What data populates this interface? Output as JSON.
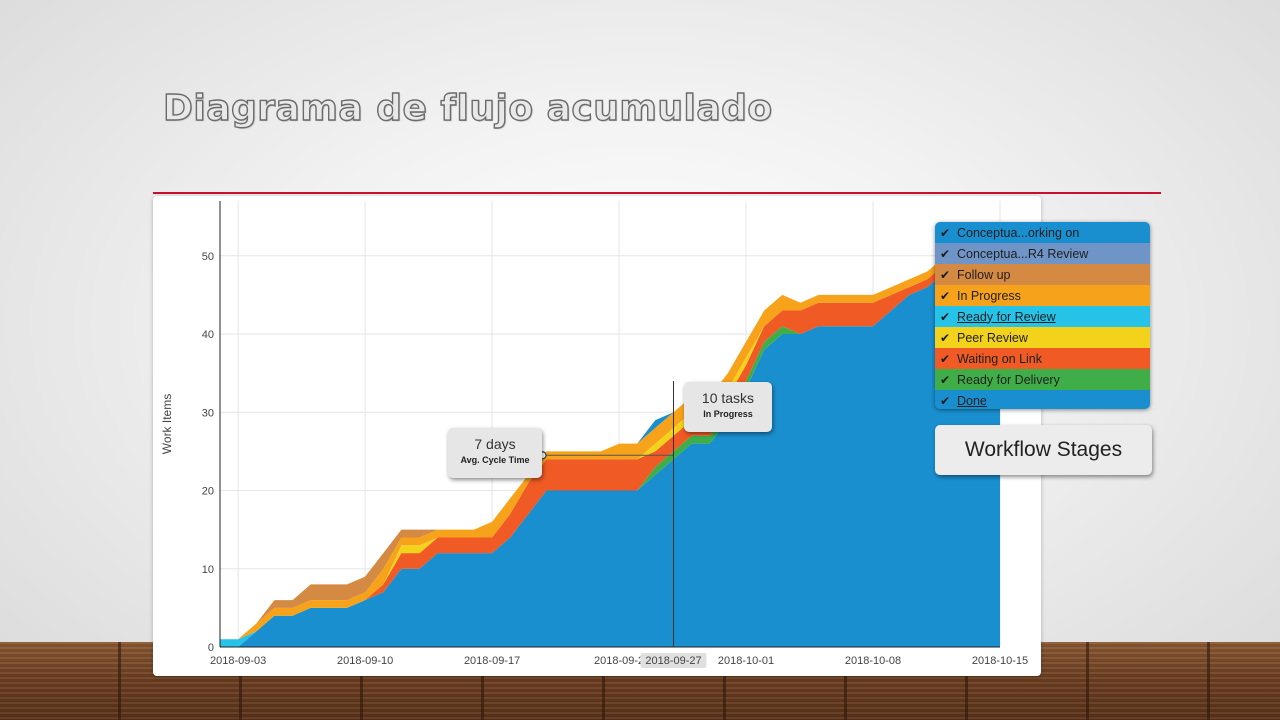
{
  "slide": {
    "title": "Diagrama de flujo acumulado"
  },
  "chart_data": {
    "type": "area",
    "stacked": true,
    "ylabel": "Work Items",
    "xlabel": "",
    "ylim": [
      0,
      57
    ],
    "yticks": [
      0,
      10,
      20,
      30,
      40,
      50
    ],
    "x_tick_labels": [
      "2018-09-03",
      "2018-09-10",
      "2018-09-17",
      "2018-09-2",
      "2018-09-27",
      "2018-10-01",
      "2018-10-08",
      "2018-10-15"
    ],
    "x_tick_days": [
      0,
      7,
      14,
      21,
      24,
      28,
      35,
      42
    ],
    "x_dates": [
      "2018-09-02",
      "2018-09-03",
      "2018-09-04",
      "2018-09-05",
      "2018-09-06",
      "2018-09-07",
      "2018-09-08",
      "2018-09-09",
      "2018-09-10",
      "2018-09-11",
      "2018-09-12",
      "2018-09-13",
      "2018-09-14",
      "2018-09-15",
      "2018-09-16",
      "2018-09-17",
      "2018-09-18",
      "2018-09-19",
      "2018-09-20",
      "2018-09-21",
      "2018-09-22",
      "2018-09-23",
      "2018-09-24",
      "2018-09-25",
      "2018-09-26",
      "2018-09-27",
      "2018-09-28",
      "2018-09-29",
      "2018-09-30",
      "2018-10-01",
      "2018-10-02",
      "2018-10-03",
      "2018-10-04",
      "2018-10-05",
      "2018-10-06",
      "2018-10-07",
      "2018-10-08",
      "2018-10-09",
      "2018-10-10",
      "2018-10-11",
      "2018-10-12",
      "2018-10-13",
      "2018-10-14",
      "2018-10-15"
    ],
    "x_days_from_2018_09_03": [
      -1,
      0,
      1,
      2,
      3,
      4,
      5,
      6,
      7,
      8,
      9,
      10,
      11,
      12,
      13,
      14,
      15,
      16,
      17,
      18,
      19,
      20,
      21,
      22,
      23,
      24,
      25,
      26,
      27,
      28,
      29,
      30,
      31,
      32,
      33,
      34,
      35,
      36,
      37,
      38,
      39,
      40,
      41,
      42
    ],
    "series": [
      {
        "name": "Done",
        "color": "#1a8fcf",
        "values": [
          0,
          0,
          2,
          4,
          4,
          5,
          5,
          5,
          6,
          7,
          10,
          10,
          12,
          12,
          12,
          12,
          14,
          17,
          20,
          20,
          20,
          20,
          20,
          20,
          22,
          24,
          26,
          26,
          29,
          33,
          38,
          40,
          40,
          41,
          41,
          41,
          41,
          43,
          45,
          46,
          48,
          50,
          50,
          50
        ]
      },
      {
        "name": "Ready for Delivery",
        "color": "#3fae49",
        "values": [
          0,
          0,
          0,
          0,
          0,
          0,
          0,
          0,
          0,
          0,
          0,
          0,
          0,
          0,
          0,
          0,
          0,
          0,
          0,
          0,
          0,
          0,
          0,
          0,
          1,
          1,
          1,
          1,
          1,
          1,
          1,
          1,
          0,
          0,
          0,
          0,
          0,
          0,
          0,
          0,
          0,
          0,
          0,
          0
        ]
      },
      {
        "name": "Waiting on Link",
        "color": "#f05a24",
        "values": [
          0,
          0,
          0,
          0,
          0,
          0,
          0,
          0,
          0,
          1,
          2,
          2,
          2,
          2,
          2,
          2,
          3,
          4,
          4,
          4,
          4,
          4,
          4,
          4,
          2,
          2,
          2,
          2,
          2,
          2,
          2,
          2,
          3,
          3,
          3,
          3,
          3,
          2,
          1,
          1,
          1,
          0,
          0,
          0
        ]
      },
      {
        "name": "Peer Review",
        "color": "#f2d21b",
        "values": [
          0,
          0,
          0,
          0,
          0,
          0,
          0,
          0,
          0,
          0,
          1,
          1,
          0,
          0,
          0,
          0,
          0,
          0,
          0,
          0,
          0,
          0,
          0,
          0,
          1,
          1,
          1,
          1,
          1,
          1,
          0,
          0,
          0,
          0,
          0,
          0,
          0,
          0,
          0,
          0,
          0,
          0,
          0,
          0
        ]
      },
      {
        "name": "Ready for Review",
        "color": "#27c2e8",
        "values": [
          1,
          1,
          0,
          0,
          0,
          0,
          0,
          0,
          0,
          0,
          0,
          0,
          0,
          0,
          0,
          0,
          0,
          0,
          0,
          0,
          0,
          0,
          0,
          0,
          0,
          0,
          0,
          0,
          0,
          0,
          0,
          0,
          0,
          0,
          0,
          0,
          0,
          0,
          0,
          0,
          0,
          0,
          0,
          0
        ]
      },
      {
        "name": "In Progress",
        "color": "#f7a21b",
        "values": [
          0,
          0,
          1,
          1,
          1,
          1,
          1,
          1,
          1,
          2,
          1,
          1,
          1,
          1,
          1,
          2,
          2,
          1,
          1,
          1,
          1,
          1,
          2,
          2,
          2,
          2,
          2,
          2,
          2,
          2,
          2,
          2,
          1,
          1,
          1,
          1,
          1,
          1,
          1,
          1,
          1,
          0,
          0,
          0
        ]
      },
      {
        "name": "Follow up",
        "color": "#d48a42",
        "values": [
          0,
          0,
          0,
          1,
          1,
          2,
          2,
          2,
          2,
          2,
          1,
          1,
          0,
          0,
          0,
          0,
          0,
          0,
          0,
          0,
          0,
          0,
          0,
          0,
          0,
          0,
          0,
          0,
          0,
          0,
          0,
          0,
          0,
          0,
          0,
          0,
          0,
          0,
          0,
          0,
          0,
          0,
          0,
          0
        ]
      },
      {
        "name": "Conceptua...R4 Review",
        "color": "#6f94c8",
        "values": [
          0,
          0,
          0,
          0,
          0,
          0,
          0,
          0,
          0,
          0,
          0,
          0,
          0,
          0,
          0,
          0,
          0,
          0,
          0,
          0,
          0,
          0,
          0,
          0,
          0,
          0,
          0,
          0,
          0,
          0,
          0,
          0,
          0,
          0,
          0,
          0,
          0,
          0,
          0,
          0,
          0,
          0,
          0,
          0
        ]
      },
      {
        "name": "Conceptua...orking on",
        "color": "#1a8fcf",
        "values": [
          0,
          0,
          0,
          0,
          0,
          0,
          0,
          0,
          0,
          0,
          0,
          0,
          0,
          0,
          0,
          0,
          0,
          0,
          0,
          0,
          0,
          0,
          0,
          0,
          1,
          0,
          0,
          0,
          0,
          0,
          0,
          0,
          0,
          0,
          0,
          0,
          0,
          0,
          0,
          0,
          0,
          0,
          0,
          0
        ]
      }
    ],
    "annotations": [
      {
        "big": "7 days",
        "small": "Avg. Cycle Time",
        "x_date": "2018-09-20",
        "y": 24.5
      },
      {
        "big": "10 tasks",
        "small": "In Progress",
        "x_date": "2018-09-27"
      }
    ],
    "legend": [
      {
        "label": "Conceptua...orking on",
        "color": "#1a8fcf",
        "underline": false
      },
      {
        "label": "Conceptua...R4 Review",
        "color": "#6f94c8",
        "underline": false
      },
      {
        "label": "Follow up",
        "color": "#d48a42",
        "underline": false
      },
      {
        "label": "In Progress",
        "color": "#f7a21b",
        "underline": false
      },
      {
        "label": "Ready for Review",
        "color": "#27c2e8",
        "underline": true
      },
      {
        "label": "Peer Review",
        "color": "#f2d21b",
        "underline": false
      },
      {
        "label": "Waiting on Link",
        "color": "#f05a24",
        "underline": false
      },
      {
        "label": "Ready for Delivery",
        "color": "#3fae49",
        "underline": false
      },
      {
        "label": "Done",
        "color": "#1a8fcf",
        "underline": true
      }
    ],
    "grid": true,
    "legend_placement": "right"
  },
  "workflow_button": {
    "label": "Workflow Stages"
  }
}
